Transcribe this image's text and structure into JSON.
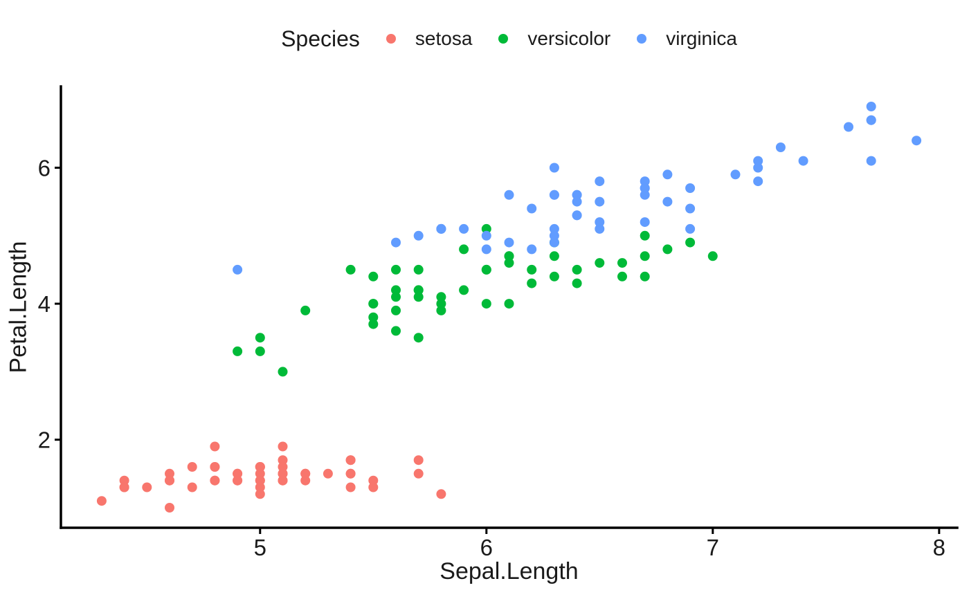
{
  "chart_data": {
    "type": "scatter",
    "title": "",
    "legend_title": "Species",
    "legend_position": "top",
    "xlabel": "Sepal.Length",
    "ylabel": "Petal.Length",
    "xlim": [
      4.12,
      8.08
    ],
    "ylim": [
      0.705,
      7.195
    ],
    "xticks": [
      5,
      6,
      7,
      8
    ],
    "yticks": [
      2,
      4,
      6
    ],
    "grid": false,
    "background": "#ffffff",
    "axis_color": "#000000",
    "text_color": "#1a1a1a",
    "point_radius_px": 7,
    "series": [
      {
        "name": "setosa",
        "color": "#F8766D",
        "x": [
          5.1,
          4.9,
          4.7,
          4.6,
          5.0,
          5.4,
          4.6,
          5.0,
          4.4,
          4.9,
          5.4,
          4.8,
          4.8,
          4.3,
          5.8,
          5.7,
          5.4,
          5.1,
          5.7,
          5.1,
          5.4,
          5.1,
          4.6,
          5.1,
          4.8,
          5.0,
          5.0,
          5.2,
          5.2,
          4.7,
          4.8,
          5.4,
          5.2,
          5.5,
          4.9,
          5.0,
          5.5,
          4.9,
          4.4,
          5.1,
          5.0,
          4.5,
          4.4,
          5.0,
          5.1,
          4.8,
          5.1,
          4.6,
          5.3,
          5.0
        ],
        "y": [
          1.4,
          1.4,
          1.3,
          1.5,
          1.4,
          1.7,
          1.4,
          1.5,
          1.4,
          1.5,
          1.5,
          1.6,
          1.4,
          1.1,
          1.2,
          1.5,
          1.3,
          1.4,
          1.7,
          1.5,
          1.7,
          1.5,
          1.0,
          1.7,
          1.9,
          1.6,
          1.6,
          1.5,
          1.4,
          1.6,
          1.6,
          1.5,
          1.5,
          1.4,
          1.5,
          1.2,
          1.3,
          1.4,
          1.3,
          1.5,
          1.3,
          1.3,
          1.3,
          1.6,
          1.9,
          1.4,
          1.6,
          1.4,
          1.5,
          1.4
        ]
      },
      {
        "name": "versicolor",
        "color": "#00BA38",
        "x": [
          7.0,
          6.4,
          6.9,
          5.5,
          6.5,
          5.7,
          6.3,
          4.9,
          6.6,
          5.2,
          5.0,
          5.9,
          6.0,
          6.1,
          5.6,
          6.7,
          5.6,
          5.8,
          6.2,
          5.6,
          5.9,
          6.1,
          6.3,
          6.1,
          6.4,
          6.6,
          6.8,
          6.7,
          6.0,
          5.7,
          5.5,
          5.5,
          5.8,
          6.0,
          5.4,
          6.0,
          6.7,
          6.3,
          5.6,
          5.5,
          5.5,
          6.1,
          5.8,
          5.0,
          5.6,
          5.7,
          5.7,
          6.2,
          5.1,
          5.7
        ],
        "y": [
          4.7,
          4.5,
          4.9,
          4.0,
          4.6,
          4.5,
          4.7,
          3.3,
          4.6,
          3.9,
          3.5,
          4.2,
          4.0,
          4.7,
          3.6,
          4.4,
          4.5,
          4.1,
          4.5,
          3.9,
          4.8,
          4.0,
          4.9,
          4.7,
          4.3,
          4.4,
          4.8,
          5.0,
          4.5,
          3.5,
          3.8,
          3.7,
          3.9,
          5.1,
          4.5,
          4.5,
          4.7,
          4.4,
          4.1,
          4.0,
          4.4,
          4.6,
          4.0,
          3.3,
          4.2,
          4.2,
          4.2,
          4.3,
          3.0,
          4.1
        ]
      },
      {
        "name": "virginica",
        "color": "#619CFF",
        "x": [
          6.3,
          5.8,
          7.1,
          6.3,
          6.5,
          7.6,
          4.9,
          7.3,
          6.7,
          7.2,
          6.5,
          6.4,
          6.8,
          5.7,
          5.8,
          6.4,
          6.5,
          7.7,
          7.7,
          6.0,
          6.9,
          5.6,
          7.7,
          6.3,
          6.7,
          7.2,
          6.2,
          6.1,
          6.4,
          7.2,
          7.4,
          7.9,
          6.4,
          6.3,
          6.1,
          7.7,
          6.3,
          6.4,
          6.0,
          6.9,
          6.7,
          6.9,
          5.8,
          6.8,
          6.7,
          6.7,
          6.3,
          6.5,
          6.2,
          5.9
        ],
        "y": [
          6.0,
          5.1,
          5.9,
          5.6,
          5.8,
          6.6,
          4.5,
          6.3,
          5.8,
          6.1,
          5.1,
          5.3,
          5.5,
          5.0,
          5.1,
          5.3,
          5.5,
          6.7,
          6.9,
          5.0,
          5.7,
          4.9,
          6.7,
          4.9,
          5.7,
          6.0,
          4.8,
          4.9,
          5.6,
          5.8,
          6.1,
          6.4,
          5.6,
          5.1,
          5.6,
          6.1,
          5.6,
          5.5,
          4.8,
          5.4,
          5.6,
          5.1,
          5.1,
          5.9,
          5.7,
          5.2,
          5.0,
          5.2,
          5.4,
          5.1
        ]
      }
    ]
  }
}
